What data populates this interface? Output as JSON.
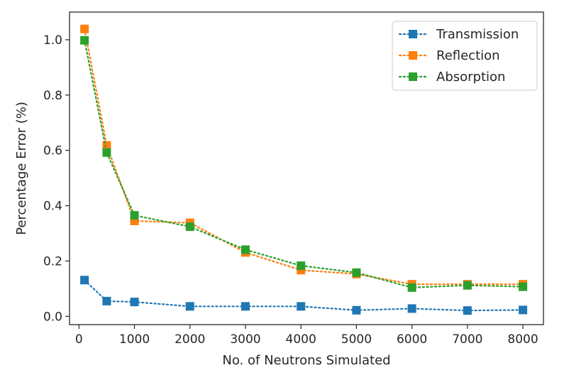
{
  "chart_data": {
    "type": "line",
    "xlabel": "No. of Neutrons Simulated",
    "ylabel": "Percentage Error (%)",
    "xlim": [
      -170,
      8370
    ],
    "ylim": [
      -0.03,
      1.1
    ],
    "xticks": [
      0,
      1000,
      2000,
      3000,
      4000,
      5000,
      6000,
      7000,
      8000
    ],
    "xtick_labels": [
      "0",
      "1000",
      "2000",
      "3000",
      "4000",
      "5000",
      "6000",
      "7000",
      "8000"
    ],
    "yticks": [
      0.0,
      0.2,
      0.4,
      0.6,
      0.8,
      1.0
    ],
    "ytick_labels": [
      "0.0",
      "0.2",
      "0.4",
      "0.6",
      "0.8",
      "1.0"
    ],
    "grid": false,
    "legend_position": "top-right",
    "line_style": "dotted",
    "marker": "square",
    "x": [
      100,
      500,
      1000,
      2000,
      3000,
      4000,
      5000,
      6000,
      7000,
      8000
    ],
    "series": [
      {
        "name": "Transmission",
        "color": "#1f77b4",
        "values": [
          0.131,
          0.055,
          0.052,
          0.036,
          0.036,
          0.036,
          0.022,
          0.028,
          0.021,
          0.023
        ]
      },
      {
        "name": "Reflection",
        "color": "#ff7f0e",
        "values": [
          1.039,
          0.618,
          0.345,
          0.338,
          0.231,
          0.167,
          0.153,
          0.116,
          0.116,
          0.116
        ]
      },
      {
        "name": "Absorption",
        "color": "#2ca02c",
        "values": [
          0.998,
          0.592,
          0.365,
          0.324,
          0.241,
          0.183,
          0.158,
          0.104,
          0.112,
          0.107
        ]
      }
    ]
  }
}
